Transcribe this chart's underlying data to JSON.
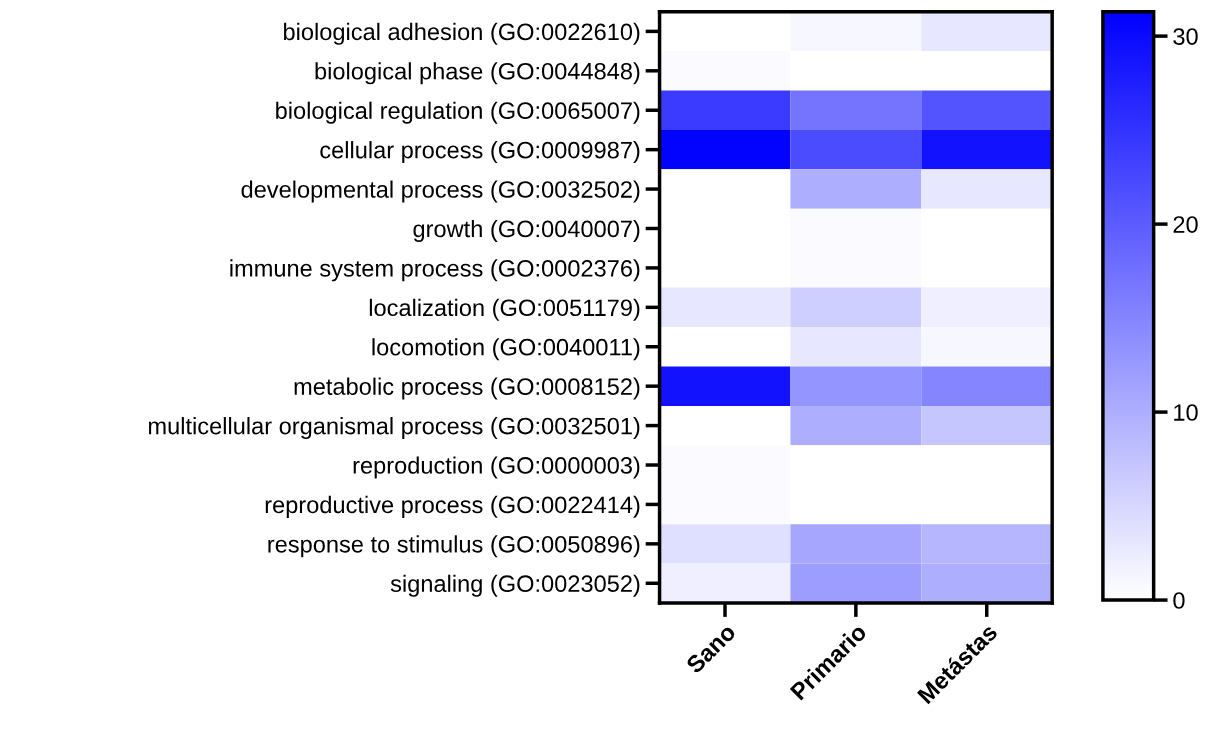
{
  "chart_data": {
    "type": "heatmap",
    "categories": [
      "Sano",
      "Primario",
      "Metástas"
    ],
    "y_categories": [
      "biological adhesion (GO:0022610)",
      "biological phase (GO:0044848)",
      "biological regulation (GO:0065007)",
      "cellular process (GO:0009987)",
      "developmental process (GO:0032502)",
      "growth (GO:0040007)",
      "immune system process (GO:0002376)",
      "localization (GO:0051179)",
      "locomotion (GO:0040011)",
      "metabolic process (GO:0008152)",
      "multicellular organismal process (GO:0032501)",
      "reproduction (GO:0000003)",
      "reproductive process (GO:0022414)",
      "response to stimulus (GO:0050896)",
      "signaling (GO:0023052)"
    ],
    "cells": [
      [
        0,
        1,
        3
      ],
      [
        0.5,
        0,
        0
      ],
      [
        24,
        17,
        21
      ],
      [
        31,
        22,
        29
      ],
      [
        0,
        10,
        3
      ],
      [
        0,
        0.5,
        0
      ],
      [
        0,
        0.5,
        0
      ],
      [
        3,
        6,
        2
      ],
      [
        0,
        3,
        1
      ],
      [
        29,
        13,
        15
      ],
      [
        0,
        10,
        7
      ],
      [
        0.5,
        0,
        0
      ],
      [
        0.5,
        0,
        0
      ],
      [
        4,
        11,
        9
      ],
      [
        2,
        12,
        10
      ]
    ],
    "clim": [
      0,
      31.3
    ],
    "cticks": [
      0,
      10,
      20,
      30
    ]
  }
}
